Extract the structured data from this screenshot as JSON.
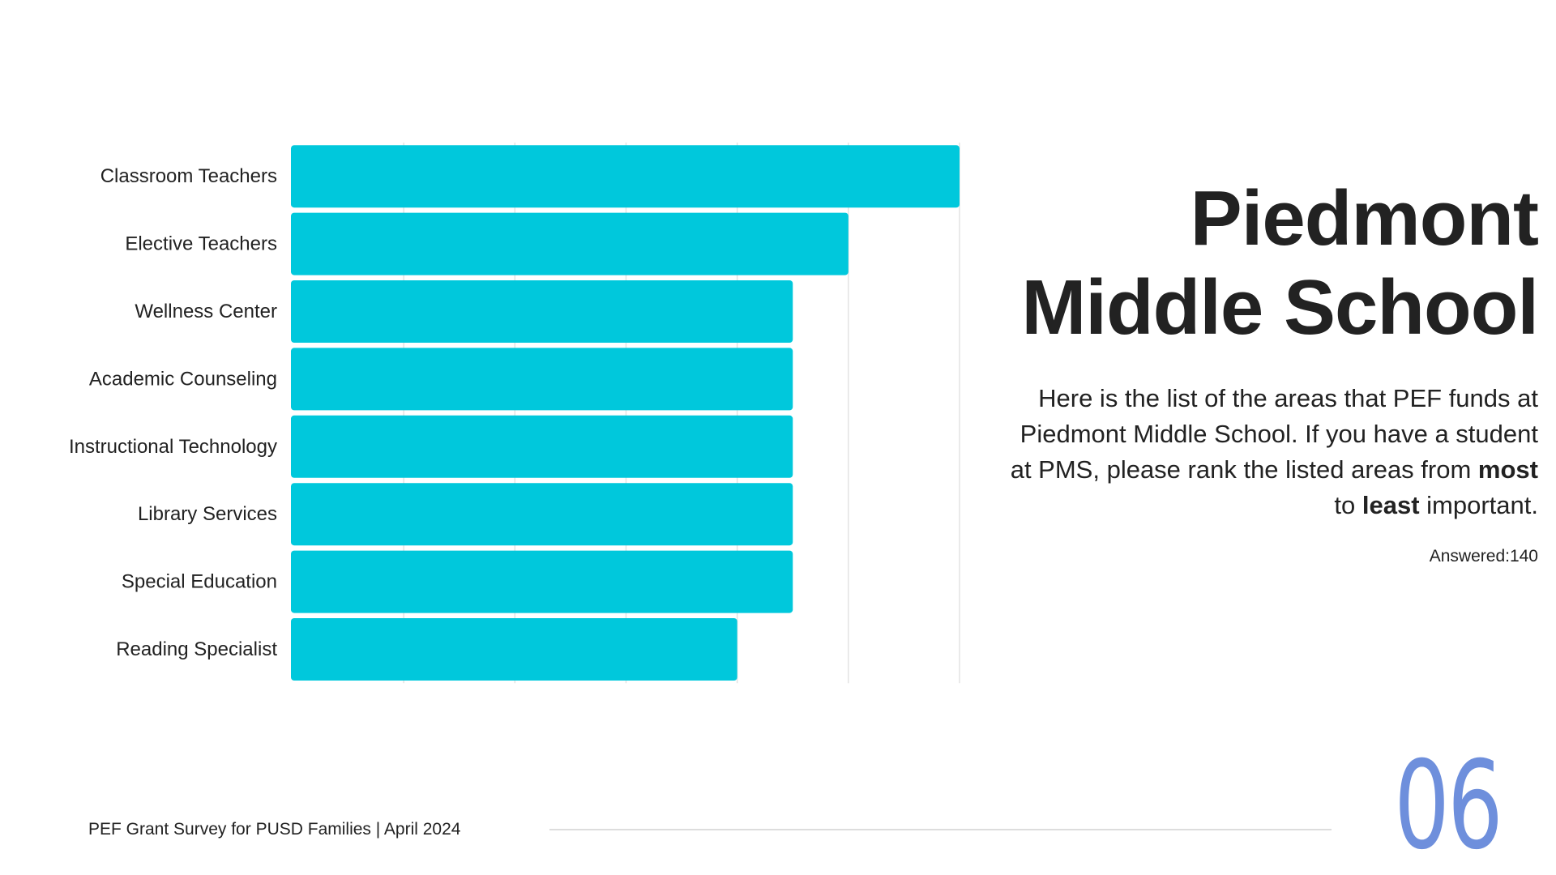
{
  "slide": {
    "title_line1": "Piedmont",
    "title_line2": "Middle School",
    "description": {
      "part1": "Here is the list of the areas that PEF funds at Piedmont Middle School. If you have a student at PMS, please rank the listed areas from ",
      "bold1": "most",
      "part2": " to ",
      "bold2": "least",
      "part3": " important."
    },
    "answered": "Answered:140",
    "footer": "PEF Grant Survey for PUSD Families | April 2024",
    "page_number": "06",
    "accent_color": "#6e8fdc"
  },
  "chart_data": {
    "type": "bar",
    "orientation": "horizontal",
    "categories": [
      "Classroom Teachers",
      "Elective Teachers",
      "Wellness Center",
      "Academic Counseling",
      "Instructional Technology",
      "Library Services",
      "Special Education",
      "Reading Specialist"
    ],
    "values": [
      6.0,
      5.0,
      4.5,
      4.5,
      4.5,
      4.5,
      4.5,
      4.0
    ],
    "xlim": [
      0,
      6
    ],
    "grid": true,
    "bar_color": "#00c8dc",
    "title": "",
    "xlabel": "",
    "ylabel": ""
  }
}
